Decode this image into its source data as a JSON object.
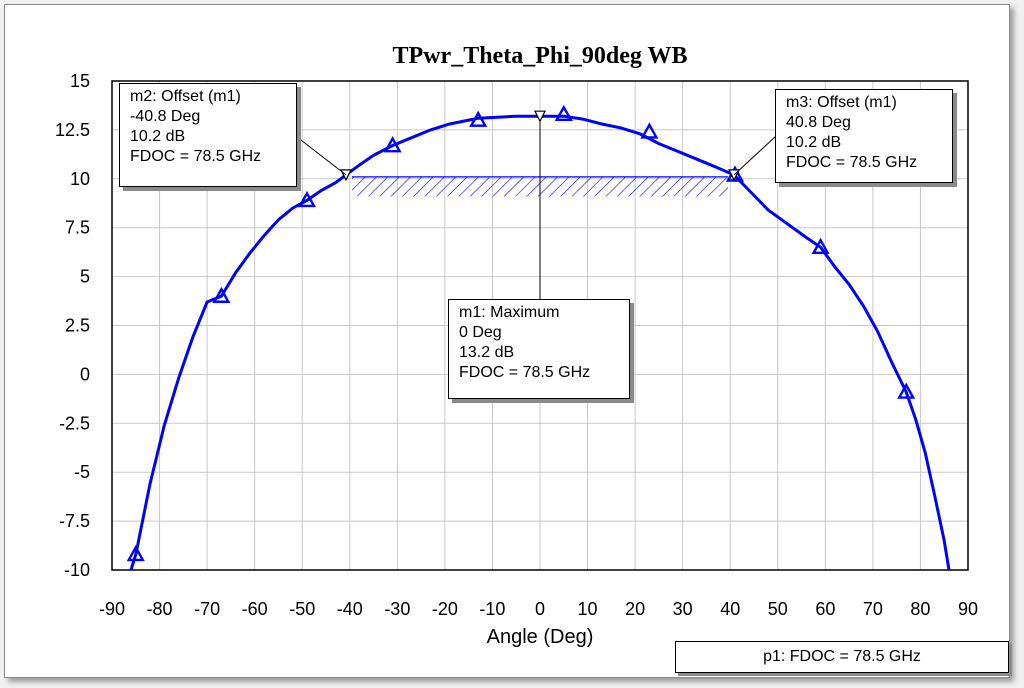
{
  "colors": {
    "trace": "#0000ff",
    "grid": "#c8c8c8",
    "frame": "#000000"
  },
  "chart_data": {
    "type": "line",
    "title": "TPwr_Theta_Phi_90deg WB",
    "xlabel": "Angle (Deg)",
    "ylabel": "",
    "xlim": [
      -90,
      90
    ],
    "ylim": [
      -10,
      15
    ],
    "xticks": [
      "-90",
      "-80",
      "-70",
      "-60",
      "-50",
      "-40",
      "-30",
      "-20",
      "-10",
      "0",
      "10",
      "20",
      "30",
      "40",
      "50",
      "60",
      "70",
      "80",
      "90"
    ],
    "yticks": [
      "15",
      "12.5",
      "10",
      "7.5",
      "5",
      "2.5",
      "0",
      "-2.5",
      "-5",
      "-7.5",
      "-10"
    ],
    "grid": true,
    "series": [
      {
        "name": "p1: FDOC = 78.5 GHz",
        "x": [
          -86,
          -85,
          -82,
          -79,
          -76,
          -73,
          -70,
          -67,
          -64,
          -61,
          -58,
          -55,
          -52,
          -49,
          -46,
          -43,
          -40.8,
          -38,
          -35,
          -31,
          -27,
          -23,
          -19,
          -15,
          -13,
          -9,
          -5,
          0,
          5,
          9,
          13,
          17,
          21,
          25,
          29,
          33,
          37,
          40.8,
          44,
          48,
          52,
          56,
          59,
          62,
          65,
          68,
          71,
          74,
          77,
          79,
          81,
          83,
          85,
          86
        ],
        "y": [
          -10,
          -9.2,
          -5.6,
          -2.6,
          -0.2,
          1.9,
          3.7,
          4.0,
          5.2,
          6.2,
          7.1,
          7.9,
          8.5,
          8.9,
          9.4,
          9.8,
          10.2,
          10.7,
          11.2,
          11.7,
          12.1,
          12.5,
          12.8,
          13.0,
          13.1,
          13.15,
          13.2,
          13.2,
          13.2,
          13.05,
          12.8,
          12.6,
          12.3,
          11.8,
          11.4,
          11.0,
          10.6,
          10.2,
          9.4,
          8.4,
          7.7,
          7.0,
          6.5,
          5.5,
          4.6,
          3.5,
          2.2,
          0.6,
          -0.9,
          -2.3,
          -4.0,
          -6.2,
          -8.5,
          -10
        ]
      }
    ],
    "triangle_markers": {
      "x": [
        -85,
        -67,
        -49,
        -31,
        -13,
        5,
        23,
        41,
        59,
        77
      ],
      "y": [
        -9.2,
        4.0,
        8.9,
        11.7,
        13.0,
        13.3,
        12.4,
        10.2,
        6.5,
        -0.9
      ]
    },
    "markers": [
      {
        "id": "m1",
        "x": 0,
        "y": 13.2,
        "lines": [
          "m1: Maximum",
          "0 Deg",
          "13.2 dB",
          "FDOC = 78.5 GHz"
        ]
      },
      {
        "id": "m2",
        "x": -40.8,
        "y": 10.2,
        "lines": [
          "m2: Offset (m1)",
          "-40.8 Deg",
          "10.2 dB",
          "FDOC = 78.5 GHz"
        ]
      },
      {
        "id": "m3",
        "x": 40.8,
        "y": 10.2,
        "lines": [
          "m3: Offset (m1)",
          "40.8 Deg",
          "10.2 dB",
          "FDOC = 78.5 GHz"
        ]
      }
    ],
    "hatch_band": {
      "x_from": -40.8,
      "x_to": 40.8,
      "y_top": 10.2,
      "y_bottom": 9.2
    }
  },
  "legend": {
    "label": "p1: FDOC = 78.5 GHz"
  }
}
